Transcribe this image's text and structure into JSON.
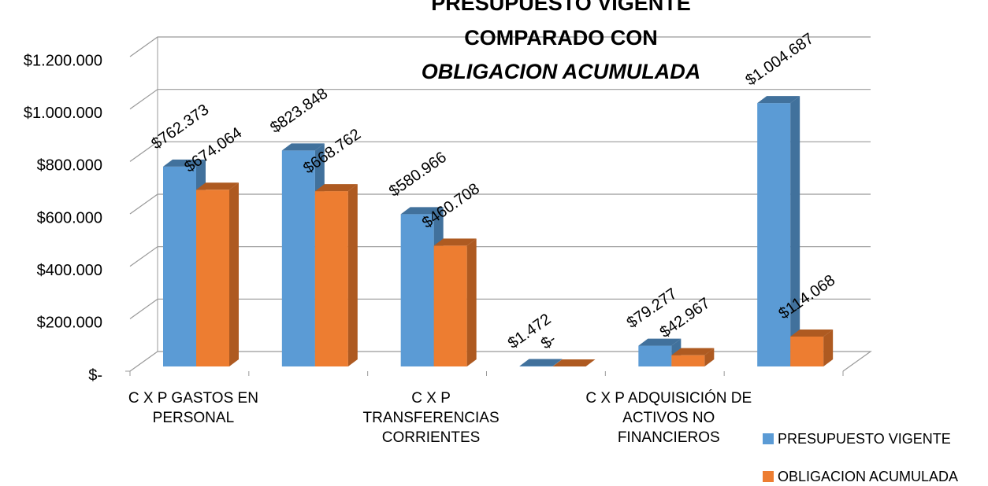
{
  "chart_data": {
    "type": "bar3d",
    "title": [
      "PRESUPUESTO VIGENTE",
      "COMPARADO CON",
      "OBLIGACION ACUMULADA"
    ],
    "categories": [
      "C X P GASTOS EN PERSONAL",
      null,
      "C X P TRANSFERENCIAS CORRIENTES",
      null,
      "C X P ADQUISICIÓN DE ACTIVOS NO FINANCIEROS",
      null
    ],
    "series": [
      {
        "name": "PRESUPUESTO VIGENTE",
        "color": "#5b9bd5",
        "side": "#41719c",
        "values": [
          762373,
          823848,
          580966,
          1472,
          79277,
          1004687
        ],
        "value_labels": [
          "$762.373",
          "$823.848",
          "$580.966",
          "$1.472",
          "$79.277",
          "$1.004.687"
        ]
      },
      {
        "name": "OBLIGACION ACUMULADA",
        "color": "#ed7d31",
        "side": "#ae5a21",
        "values": [
          674064,
          668762,
          460708,
          0,
          42967,
          114068
        ],
        "value_labels": [
          "$674.064",
          "$668.762",
          "$460.708",
          "$-",
          "$42.967",
          "$114.068"
        ]
      }
    ],
    "ylim": [
      0,
      1200000
    ],
    "yticks": [
      {
        "value": 0,
        "label": "$-"
      },
      {
        "value": 200000,
        "label": "$200.000"
      },
      {
        "value": 400000,
        "label": "$400.000"
      },
      {
        "value": 600000,
        "label": "$600.000"
      },
      {
        "value": 800000,
        "label": "$800.000"
      },
      {
        "value": 1000000,
        "label": "$1.000.000"
      },
      {
        "value": 1200000,
        "label": "$1.200.000"
      }
    ],
    "grid": true,
    "legend": "bottom-right"
  }
}
